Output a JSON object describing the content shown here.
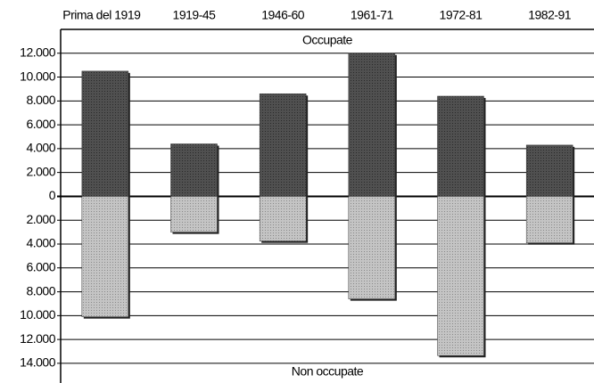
{
  "chart_data": {
    "type": "bar",
    "categories": [
      "Prima del 1919",
      "1919-45",
      "1946-60",
      "1961-71",
      "1972-81",
      "1982-91"
    ],
    "series": [
      {
        "name": "Occupate",
        "color": "#505050",
        "values": [
          10500,
          4400,
          8600,
          12000,
          8400,
          4300
        ]
      },
      {
        "name": "Non occupate",
        "color": "#bdbdbd",
        "values": [
          -10100,
          -3000,
          -3750,
          -8600,
          -13350,
          -3900
        ]
      }
    ],
    "ylim": [
      -15500,
      14000
    ],
    "yticks": [
      {
        "value": 12000,
        "label": "12.000"
      },
      {
        "value": 10000,
        "label": "10.000"
      },
      {
        "value": 8000,
        "label": "8.000"
      },
      {
        "value": 6000,
        "label": "6.000"
      },
      {
        "value": 4000,
        "label": "4.000"
      },
      {
        "value": 2000,
        "label": "2.000"
      },
      0,
      {
        "value": -2000,
        "label": "2.000"
      },
      {
        "value": -4000,
        "label": "4.000"
      },
      {
        "value": -6000,
        "label": "6.000"
      },
      {
        "value": -8000,
        "label": "8.000"
      },
      {
        "value": -10000,
        "label": "10.000"
      },
      {
        "value": -12000,
        "label": "12.000"
      },
      {
        "value": -14000,
        "label": "14.000"
      }
    ],
    "grid": true
  }
}
